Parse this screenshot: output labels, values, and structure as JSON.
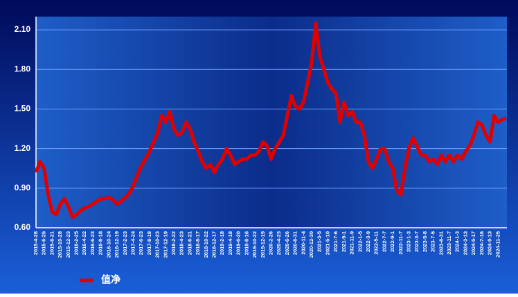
{
  "chart_data": {
    "type": "line",
    "categories": [
      "2015-4-28",
      null,
      "2015-6-25",
      null,
      "2015-8-21",
      null,
      "2015-10-28",
      null,
      "2015-12-23",
      null,
      "2016-2-25",
      null,
      "2016-4-22",
      null,
      "2016-6-23",
      null,
      "2016-8-18",
      null,
      "2016-10-24",
      null,
      "2016-12-19",
      null,
      "2017-2-23",
      null,
      "2017-4-24",
      null,
      "2017-6-23",
      null,
      "2017-8-18",
      null,
      "2017-10-23",
      null,
      "2017-12-19",
      null,
      "2018-2-22",
      null,
      "2018-4-23",
      null,
      "2018-6-21",
      null,
      "2018-8-17",
      null,
      "2018-10-22",
      null,
      "2018-12-17",
      null,
      "2019-2-18",
      null,
      "2019-4-18",
      null,
      "2019-6-20",
      null,
      "2019-8-16",
      null,
      "2019-10-22",
      null,
      "2019-12-19",
      null,
      "2020-2-26",
      null,
      "2020-4-23",
      null,
      "2020-6-26",
      null,
      "2020-8-31",
      null,
      "2020-11-4",
      null,
      "2020-12-30",
      null,
      "2021-3-5",
      null,
      "2021-5-10",
      null,
      "2021-7-6",
      null,
      "2021-9-1",
      null,
      "2021-11-9",
      null,
      "2022-1-5",
      null,
      "2022-3-9",
      null,
      "2022-5-11",
      null,
      "2022-7-7",
      null,
      "2022-9-1",
      null,
      "2022-11-7",
      null,
      "2023-1-3",
      null,
      "2023-3-7",
      null,
      "2023-5-8",
      null,
      "2023-7-5",
      null,
      "2023-8-31",
      null,
      "2023-11-7",
      null,
      "2024-1-3",
      null,
      "2024-3-13",
      null,
      "2024-5-17",
      null,
      "2024-7-16",
      null,
      "2024-9-13",
      null,
      "2024-11-25",
      null,
      null
    ],
    "series": [
      {
        "name": "值净",
        "color": "#e00000",
        "values": [
          1.02,
          1.1,
          1.05,
          0.85,
          0.72,
          0.7,
          0.78,
          0.82,
          0.76,
          0.68,
          0.7,
          0.73,
          0.75,
          0.76,
          0.78,
          0.8,
          0.82,
          0.82,
          0.83,
          0.81,
          0.78,
          0.8,
          0.83,
          0.86,
          0.92,
          1.0,
          1.07,
          1.12,
          1.18,
          1.25,
          1.32,
          1.45,
          1.4,
          1.48,
          1.35,
          1.3,
          1.32,
          1.4,
          1.35,
          1.25,
          1.18,
          1.1,
          1.05,
          1.08,
          1.02,
          1.08,
          1.12,
          1.2,
          1.15,
          1.08,
          1.1,
          1.12,
          1.12,
          1.15,
          1.15,
          1.18,
          1.25,
          1.22,
          1.12,
          1.2,
          1.25,
          1.3,
          1.45,
          1.6,
          1.52,
          1.5,
          1.55,
          1.7,
          1.85,
          2.15,
          1.9,
          1.8,
          1.7,
          1.65,
          1.62,
          1.4,
          1.55,
          1.45,
          1.48,
          1.4,
          1.4,
          1.3,
          1.1,
          1.05,
          1.12,
          1.2,
          1.2,
          1.1,
          1.05,
          0.88,
          0.85,
          1.05,
          1.2,
          1.28,
          1.22,
          1.15,
          1.15,
          1.1,
          1.12,
          1.08,
          1.15,
          1.1,
          1.15,
          1.1,
          1.15,
          1.12,
          1.18,
          1.22,
          1.3,
          1.4,
          1.38,
          1.3,
          1.25,
          1.45,
          1.4,
          1.42,
          1.43
        ]
      }
    ],
    "ylim": [
      0.6,
      2.2
    ],
    "yticks": [
      {
        "value": 0.6,
        "label": "0.60"
      },
      {
        "value": 0.9,
        "label": "0.90"
      },
      {
        "value": 1.2,
        "label": "1.20"
      },
      {
        "value": 1.5,
        "label": "1.50"
      },
      {
        "value": 1.8,
        "label": "1.80"
      },
      {
        "value": 2.1,
        "label": "2.10"
      }
    ],
    "grid": true
  }
}
